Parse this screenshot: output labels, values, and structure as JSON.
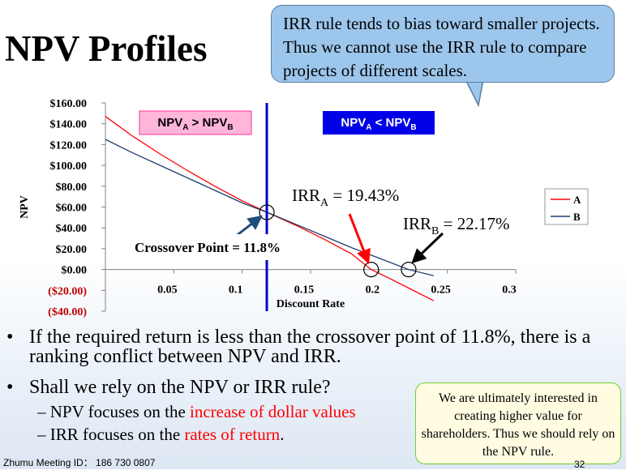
{
  "slide": {
    "title": "NPV Profiles",
    "callout": "IRR rule tends to bias toward smaller projects. Thus we cannot use the IRR rule to compare projects of different scales.",
    "bullets": [
      "If the required return is less than the crossover point of 11.8%, there is a ranking conflict between NPV and IRR.",
      "Shall we rely on the NPV or IRR rule?"
    ],
    "sub_bullets": [
      {
        "prefix": "NPV focuses on the ",
        "highlight": "increase of dollar values"
      },
      {
        "prefix": "IRR focuses on the ",
        "highlight": "rates of return",
        "suffix": "."
      }
    ],
    "note": "We are ultimately interested in creating higher value for shareholders. Thus we should rely on the NPV rule.",
    "footer": "Zhumu Meeting ID： 186 730 0807",
    "page_number": "32"
  },
  "chart_data": {
    "type": "line",
    "xlabel": "Discount Rate",
    "ylabel": "NPV",
    "xlim": [
      0,
      0.3
    ],
    "ylim": [
      -40,
      160
    ],
    "x_ticks": [
      0.05,
      0.1,
      0.15,
      0.2,
      0.25,
      0.3
    ],
    "x_tick_labels": [
      "0.05",
      "0.1",
      "0.15",
      "0.2",
      "0.25",
      "0.3"
    ],
    "y_ticks": [
      160,
      140,
      120,
      100,
      80,
      60,
      40,
      20,
      0,
      -20,
      -40
    ],
    "y_tick_labels": [
      "$160.00",
      "$140.00",
      "$120.00",
      "$100.00",
      "$80.00",
      "$60.00",
      "$40.00",
      "$20.00",
      "$0.00",
      "($20.00)",
      "($40.00)"
    ],
    "legend_position": "right",
    "series": [
      {
        "name": "A",
        "color": "#ff0000",
        "x": [
          0,
          0.02,
          0.04,
          0.06,
          0.08,
          0.1,
          0.118,
          0.14,
          0.16,
          0.18,
          0.1943,
          0.21,
          0.24
        ],
        "y": [
          147,
          128,
          111,
          95,
          80,
          66,
          55,
          42,
          29,
          15,
          0,
          -10,
          -30
        ]
      },
      {
        "name": "B",
        "color": "#1f3f6e",
        "x": [
          0,
          0.02,
          0.04,
          0.06,
          0.08,
          0.1,
          0.118,
          0.14,
          0.16,
          0.18,
          0.2,
          0.2217,
          0.24
        ],
        "y": [
          125,
          112,
          100,
          88,
          76,
          64,
          55,
          43,
          32,
          21,
          11,
          0,
          -6
        ]
      }
    ],
    "crossover_line": {
      "x": 0.118,
      "color": "#0000cc"
    },
    "annotations": {
      "left_box": {
        "main": "NPV",
        "sub1": "A",
        "op": " > ",
        "main2": "NPV",
        "sub2": "B",
        "bg": "#ffb6d9",
        "border": "#ff33a0",
        "color": "#000000"
      },
      "right_box": {
        "main": "NPV",
        "sub1": "A",
        "op": " < ",
        "main2": "NPV",
        "sub2": "B",
        "bg": "#0000e6",
        "color": "#ffffff"
      },
      "irr_a": {
        "main": "IRR",
        "sub": "A",
        "value": " = 19.43%"
      },
      "irr_b": {
        "main": "IRR",
        "sub": "B",
        "value": " = 22.17%"
      },
      "crossover_label": "Crossover Point = 11.8%",
      "circles": [
        {
          "x": 0.118,
          "y": 55
        },
        {
          "x": 0.1943,
          "y": 0
        },
        {
          "x": 0.2217,
          "y": 0
        }
      ]
    },
    "negative_tick_color": "#c00000"
  }
}
